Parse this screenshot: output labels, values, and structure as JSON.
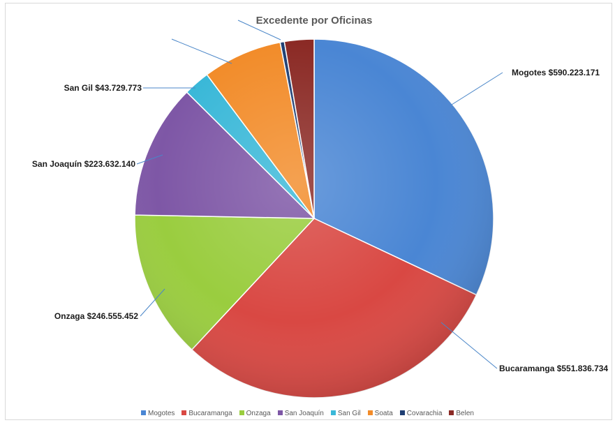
{
  "chart_data": {
    "type": "pie",
    "title": "Excedente por Oficinas",
    "slices": [
      {
        "name": "Mogotes",
        "value": 590223171,
        "label": "Mogotes $590.223.171",
        "color": "#4a86d4"
      },
      {
        "name": "Bucaramanga",
        "value": 551836734,
        "label": "Bucaramanga $551.836.734",
        "color": "#d94843"
      },
      {
        "name": "Onzaga",
        "value": 246555452,
        "label": "Onzaga $246.555.452",
        "color": "#9acd3f"
      },
      {
        "name": "San Joaquín",
        "value": 223632140,
        "label": "San Joaquín $223.632.140",
        "color": "#7e57a6"
      },
      {
        "name": "San Gil",
        "value": 43729773,
        "label": "San Gil $43.729.773",
        "color": "#3ab8d8"
      },
      {
        "name": "Soata",
        "value": 132000000,
        "label": "",
        "color": "#f28c2a"
      },
      {
        "name": "Covarachia",
        "value": 7000000,
        "label": "",
        "color": "#1f3f73"
      },
      {
        "name": "Belen",
        "value": 49000000,
        "label": "",
        "color": "#8b2a25"
      }
    ],
    "legend_position": "bottom",
    "start_angle": "12 o'clock",
    "direction": "clockwise"
  }
}
